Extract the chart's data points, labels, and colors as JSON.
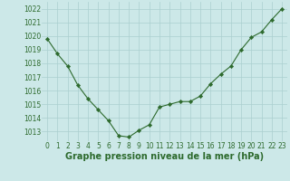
{
  "x": [
    0,
    1,
    2,
    3,
    4,
    5,
    6,
    7,
    8,
    9,
    10,
    11,
    12,
    13,
    14,
    15,
    16,
    17,
    18,
    19,
    20,
    21,
    22,
    23
  ],
  "y": [
    1019.8,
    1018.7,
    1017.8,
    1016.4,
    1015.4,
    1014.6,
    1013.8,
    1012.7,
    1012.6,
    1013.1,
    1013.5,
    1014.8,
    1015.0,
    1015.2,
    1015.2,
    1015.6,
    1016.5,
    1017.2,
    1017.8,
    1019.0,
    1019.9,
    1020.3,
    1021.2,
    1022.0
  ],
  "ylim": [
    1012.3,
    1022.5
  ],
  "xlim": [
    -0.5,
    23.5
  ],
  "yticks": [
    1013,
    1014,
    1015,
    1016,
    1017,
    1018,
    1019,
    1020,
    1021,
    1022
  ],
  "xticks": [
    0,
    1,
    2,
    3,
    4,
    5,
    6,
    7,
    8,
    9,
    10,
    11,
    12,
    13,
    14,
    15,
    16,
    17,
    18,
    19,
    20,
    21,
    22,
    23
  ],
  "xlabel": "Graphe pression niveau de la mer (hPa)",
  "line_color": "#2d6a2d",
  "marker": "D",
  "marker_size": 2.2,
  "bg_color": "#cce8e8",
  "grid_color": "#aacfcf",
  "tick_fontsize": 5.5,
  "xlabel_fontsize": 7.0,
  "xlabel_color": "#2d6a2d",
  "tick_color": "#2d6a2d"
}
